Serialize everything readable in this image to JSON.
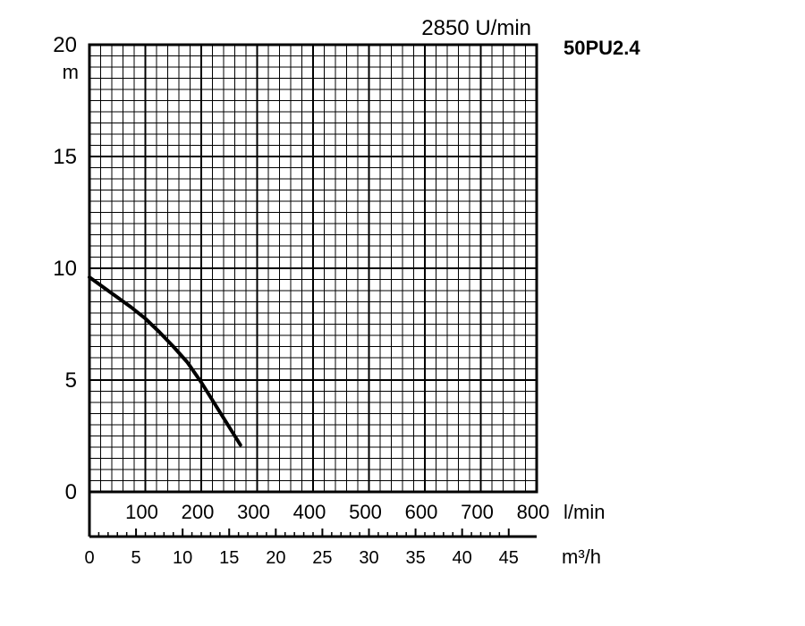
{
  "chart_data": {
    "type": "line",
    "title": "50PU2.4",
    "speed_label": "2850 U/min",
    "ylabel": "m",
    "ylim": [
      0,
      20
    ],
    "y_ticks": [
      "0",
      "5",
      "10",
      "15",
      "20"
    ],
    "x_primary": {
      "unit": "l/min",
      "range": [
        0,
        800
      ],
      "ticks": [
        "100",
        "200",
        "300",
        "400",
        "500",
        "600",
        "700",
        "800"
      ]
    },
    "x_secondary": {
      "unit": "m³/h",
      "range": [
        0,
        48
      ],
      "ticks": [
        "0",
        "5",
        "10",
        "15",
        "20",
        "25",
        "30",
        "35",
        "40",
        "45"
      ]
    },
    "grid": true,
    "series": [
      {
        "x": [
          0,
          25,
          50,
          75,
          100,
          125,
          150,
          175,
          200,
          225,
          250,
          270
        ],
        "values": [
          9.6,
          9.15,
          8.7,
          8.25,
          7.75,
          7.15,
          6.5,
          5.8,
          4.9,
          3.9,
          2.9,
          2.1
        ]
      }
    ]
  }
}
